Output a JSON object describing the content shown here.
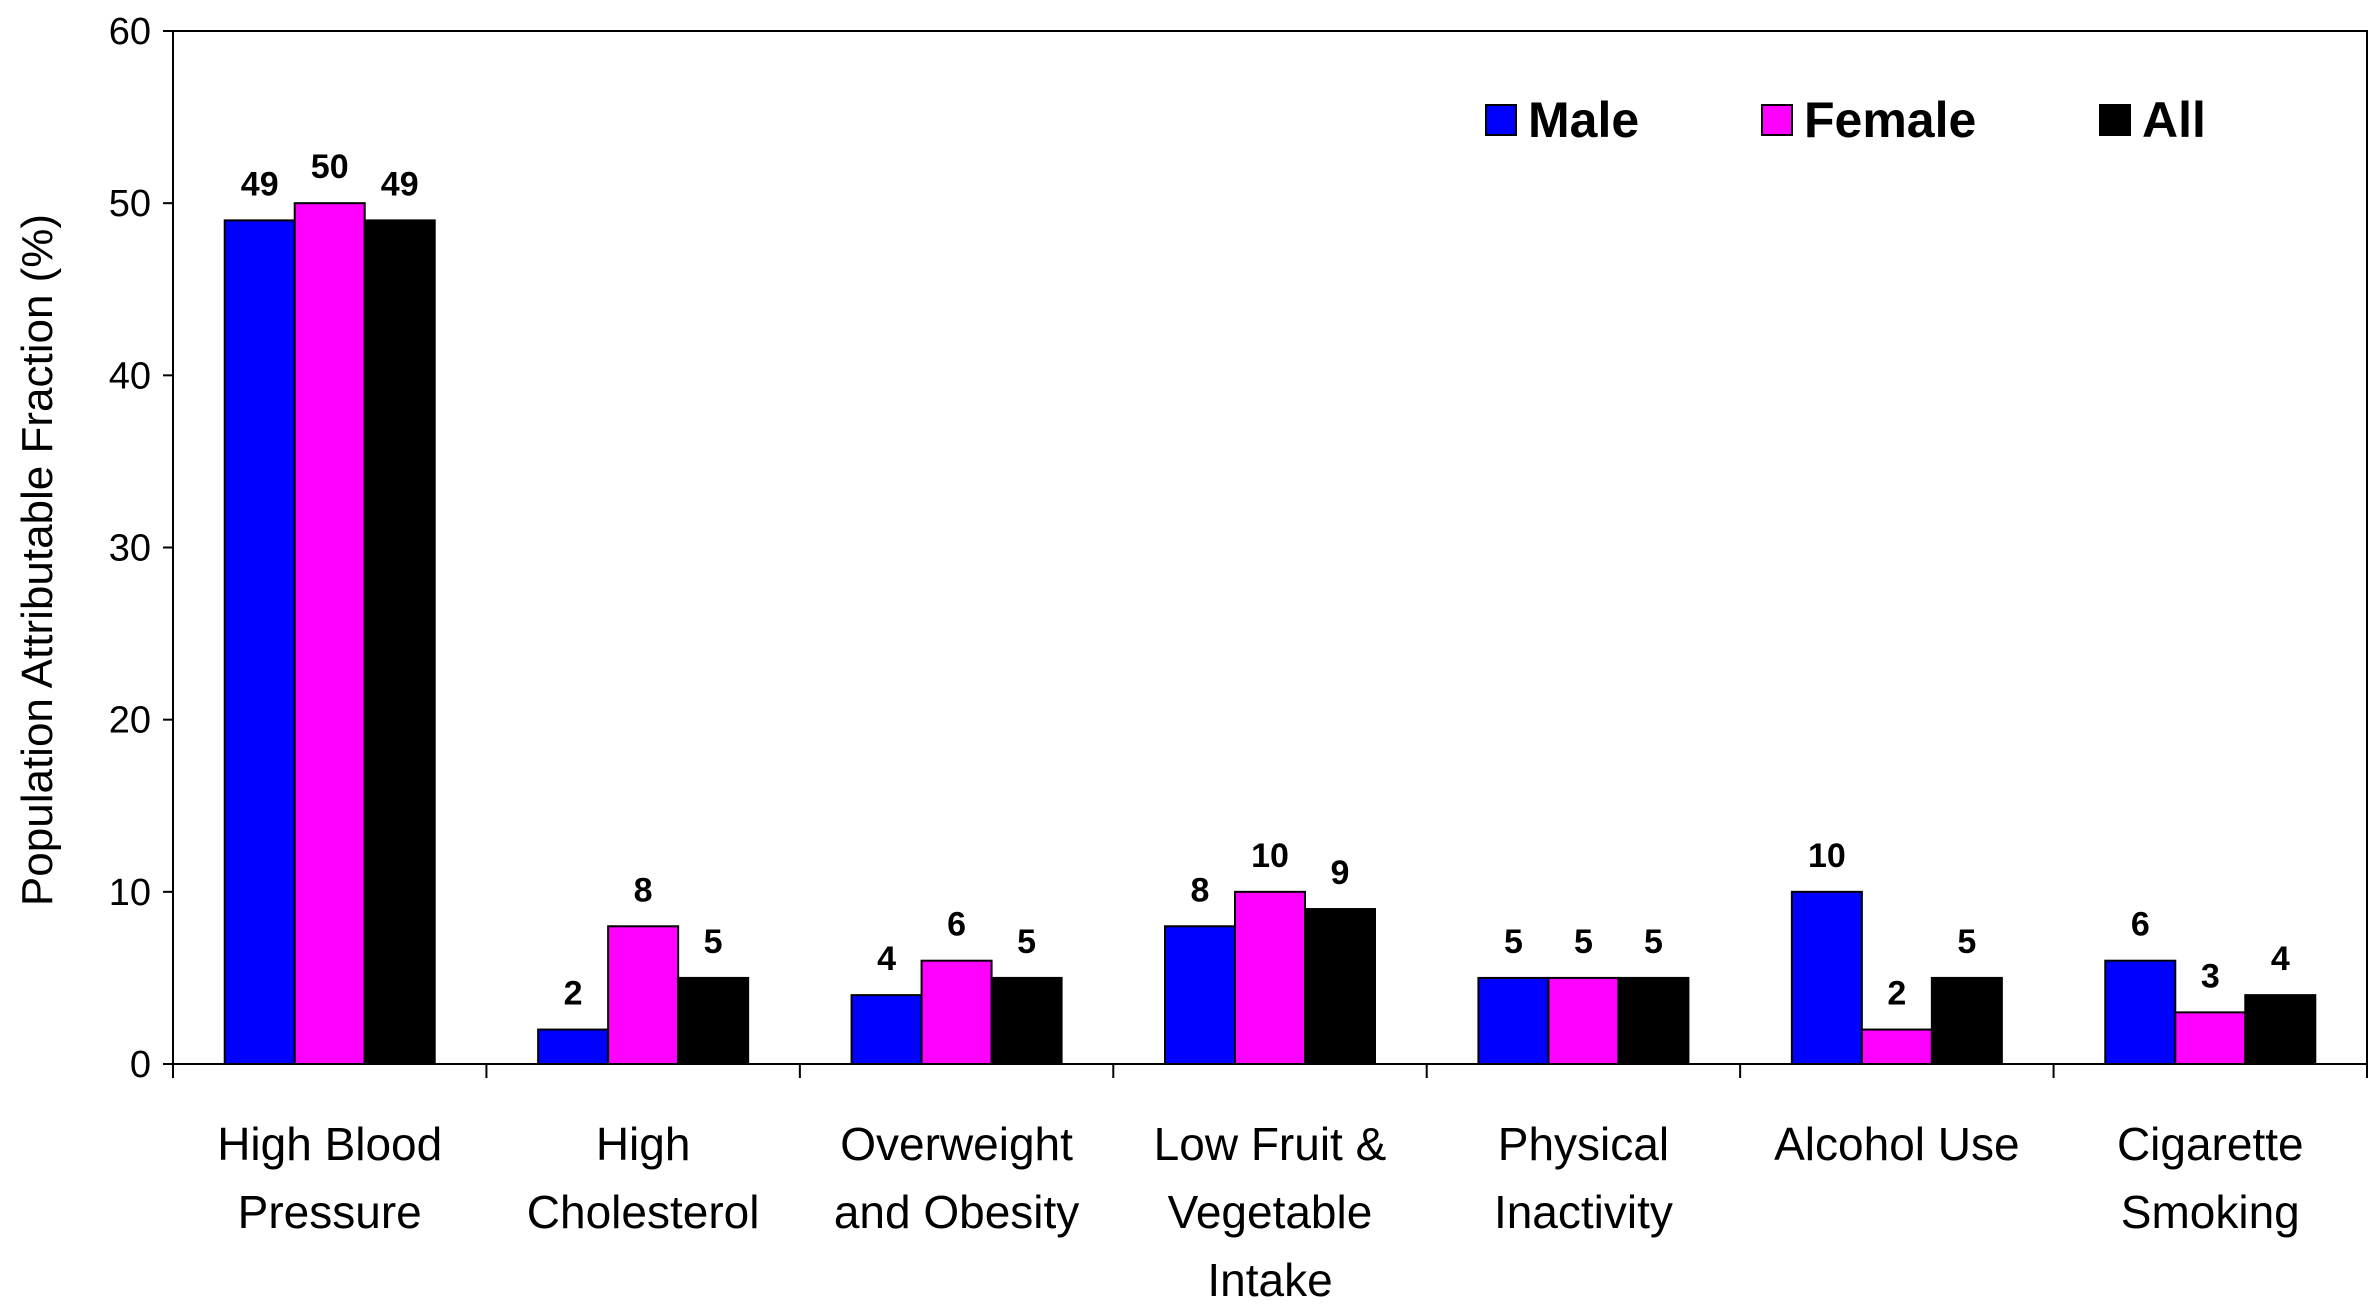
{
  "chart_data": {
    "type": "bar",
    "title": "",
    "xlabel": "",
    "ylabel": "Population Attributable Fraction (%)",
    "ylim": [
      0,
      60
    ],
    "yticks": [
      "0",
      "10",
      "20",
      "30",
      "40",
      "50",
      "60"
    ],
    "categories": [
      [
        "High Blood",
        "Pressure"
      ],
      [
        "High",
        "Cholesterol"
      ],
      [
        "Overweight",
        "and Obesity"
      ],
      [
        "Low Fruit &",
        "Vegetable",
        "Intake"
      ],
      [
        "Physical",
        "Inactivity"
      ],
      [
        "Alcohol Use"
      ],
      [
        "Cigarette",
        "Smoking"
      ]
    ],
    "series": [
      {
        "name": "Male",
        "color": "#0000FF",
        "values": [
          49,
          2,
          4,
          8,
          5,
          10,
          6
        ]
      },
      {
        "name": "Female",
        "color": "#FF00FF",
        "values": [
          50,
          8,
          6,
          10,
          5,
          2,
          3
        ]
      },
      {
        "name": "All",
        "color": "#000000",
        "values": [
          49,
          5,
          5,
          9,
          5,
          5,
          4
        ]
      }
    ],
    "legend": "top-right",
    "grid": false
  }
}
